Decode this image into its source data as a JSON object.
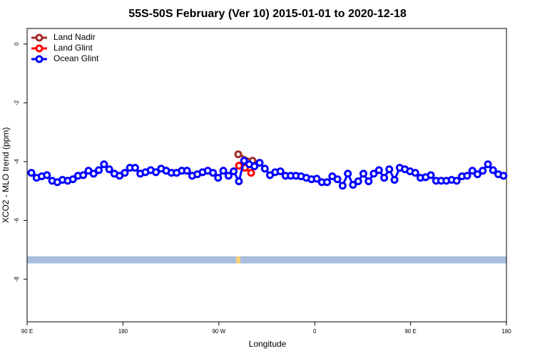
{
  "chart_data": {
    "type": "line",
    "title": "55S-50S February (Ver 10)   2015-01-01 to 2020-12-18",
    "x_label": "Longitude",
    "y_label": "XCO2 - MLO trend (ppm)",
    "xlim": [
      90,
      540
    ],
    "xticks": [
      {
        "value": 90,
        "label": "90 E"
      },
      {
        "value": 180,
        "label": "180"
      },
      {
        "value": 270,
        "label": "90 W"
      },
      {
        "value": 360,
        "label": "0"
      },
      {
        "value": 450,
        "label": "90 E"
      },
      {
        "value": 540,
        "label": "180"
      }
    ],
    "ylim": [
      -9.45,
      0.53
    ],
    "yticks": [
      0,
      -2,
      -4,
      -6,
      -8
    ],
    "legend": "top-left",
    "series": [
      {
        "name": "Land Nadir",
        "color": "#a52a2a",
        "x": [
          288.2,
          301.6
        ],
        "values": [
          -3.75,
          -3.97
        ]
      },
      {
        "name": "Land Glint",
        "color": "#ff0000",
        "x": [
          288.9,
          294.5,
          300.3
        ],
        "values": [
          -4.14,
          -4.21,
          -4.38
        ]
      },
      {
        "name": "Ocean Glint",
        "color": "#0000ff",
        "x": [
          94.0,
          98.9,
          103.7,
          108.6,
          113.5,
          118.4,
          123.2,
          128.1,
          133.0,
          137.8,
          142.7,
          147.6,
          152.4,
          157.3,
          162.2,
          167.1,
          171.9,
          176.8,
          181.7,
          186.5,
          191.4,
          196.3,
          201.1,
          206.0,
          210.9,
          215.8,
          220.6,
          225.5,
          230.4,
          235.2,
          240.1,
          245.0,
          249.8,
          254.7,
          259.6,
          264.5,
          269.3,
          274.2,
          279.1,
          283.9,
          288.8,
          293.7,
          298.5,
          303.4,
          308.3,
          313.2,
          318.0,
          322.9,
          327.8,
          332.6,
          337.5,
          342.4,
          347.2,
          352.1,
          357.0,
          361.9,
          366.7,
          371.6,
          376.5,
          381.3,
          386.2,
          391.1,
          395.9,
          400.8,
          405.7,
          410.6,
          415.4,
          420.3,
          425.2,
          430.0,
          434.9,
          439.8,
          444.6,
          449.5,
          454.4,
          459.3,
          464.1,
          469.0,
          473.9,
          478.7,
          483.6,
          488.5,
          493.3,
          498.2,
          503.1,
          508.0,
          512.8,
          517.7,
          522.6,
          527.4,
          532.3,
          537.2
        ],
        "values": [
          -4.38,
          -4.55,
          -4.5,
          -4.46,
          -4.65,
          -4.7,
          -4.62,
          -4.65,
          -4.6,
          -4.48,
          -4.46,
          -4.31,
          -4.41,
          -4.29,
          -4.09,
          -4.26,
          -4.41,
          -4.48,
          -4.38,
          -4.21,
          -4.21,
          -4.41,
          -4.36,
          -4.29,
          -4.36,
          -4.24,
          -4.31,
          -4.38,
          -4.38,
          -4.31,
          -4.31,
          -4.48,
          -4.43,
          -4.36,
          -4.31,
          -4.38,
          -4.55,
          -4.31,
          -4.48,
          -4.33,
          -4.67,
          -3.97,
          -4.09,
          -4.16,
          -4.04,
          -4.24,
          -4.46,
          -4.36,
          -4.33,
          -4.48,
          -4.48,
          -4.48,
          -4.5,
          -4.55,
          -4.6,
          -4.58,
          -4.7,
          -4.7,
          -4.5,
          -4.6,
          -4.82,
          -4.41,
          -4.79,
          -4.67,
          -4.41,
          -4.67,
          -4.41,
          -4.29,
          -4.55,
          -4.26,
          -4.62,
          -4.21,
          -4.26,
          -4.33,
          -4.38,
          -4.55,
          -4.53,
          -4.46,
          -4.65,
          -4.65,
          -4.65,
          -4.62,
          -4.65,
          -4.5,
          -4.48,
          -4.31,
          -4.43,
          -4.31,
          -4.09,
          -4.29,
          -4.43,
          -4.48
        ]
      }
    ]
  }
}
